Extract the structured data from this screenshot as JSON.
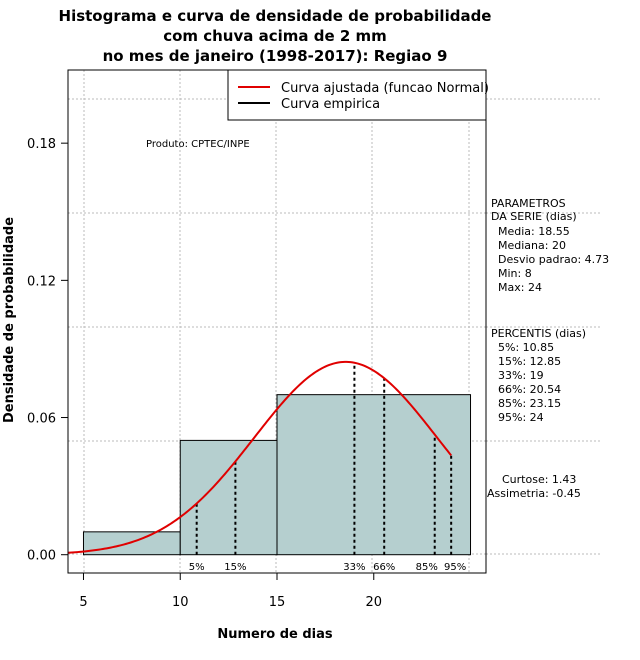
{
  "chart_data": {
    "type": "bar",
    "title_lines": [
      "Histograma e curva de densidade de probabilidade",
      "com chuva acima de 2 mm",
      "no mes de janeiro (1998-2017): Regiao 9"
    ],
    "xlabel": "Numero de dias",
    "ylabel": "Densidade de probabilidade",
    "xlim": [
      4.2,
      25.8
    ],
    "ylim": [
      -0.008,
      0.212
    ],
    "x_ticks": [
      5,
      10,
      15,
      20
    ],
    "y_ticks": [
      0.0,
      0.06,
      0.12,
      0.18
    ],
    "y_tick_labels": [
      "0.00",
      "0.06",
      "0.12",
      "0.18"
    ],
    "grid": true,
    "histogram": [
      {
        "x0": 5,
        "x1": 10,
        "density": 0.01
      },
      {
        "x0": 10,
        "x1": 15,
        "density": 0.05
      },
      {
        "x0": 15,
        "x1": 25,
        "density": 0.07
      }
    ],
    "fitted_curve": {
      "name": "Curva ajustada (funcao Normal)",
      "mean": 18.55,
      "sd": 4.73,
      "x_range": [
        4.2,
        24
      ],
      "color": "#e00000"
    },
    "empirical_curve": {
      "name": "Curva empirica",
      "color": "#000000"
    },
    "legend_position": "top-right",
    "product_label": "Produto: CPTEC/INPE",
    "parameters": {
      "header": [
        "PARAMETROS",
        "DA SERIE (dias)"
      ],
      "lines": [
        "Media: 18.55",
        "Mediana: 20",
        "Desvio padrao: 4.73",
        "Min: 8",
        "Max: 24"
      ]
    },
    "percentiles": {
      "header": "PERCENTIS (dias)",
      "lines": [
        "5%: 10.85",
        "15%: 12.85",
        "33%: 19",
        "66%: 20.54",
        "85%: 23.15",
        "95%: 24"
      ],
      "values": [
        {
          "label": "5%",
          "x": 10.85
        },
        {
          "label": "15%",
          "x": 12.85
        },
        {
          "label": "33%",
          "x": 19
        },
        {
          "label": "66%",
          "x": 20.54
        },
        {
          "label": "85%",
          "x": 23.15
        },
        {
          "label": "95%",
          "x": 24
        }
      ]
    },
    "shape_stats": [
      "Curtose: 1.43",
      "Assimetria: -0.45"
    ],
    "colors": {
      "bar_fill": "#b5cfcf",
      "bar_stroke": "#000000",
      "grid": "#bbbbbb"
    }
  }
}
